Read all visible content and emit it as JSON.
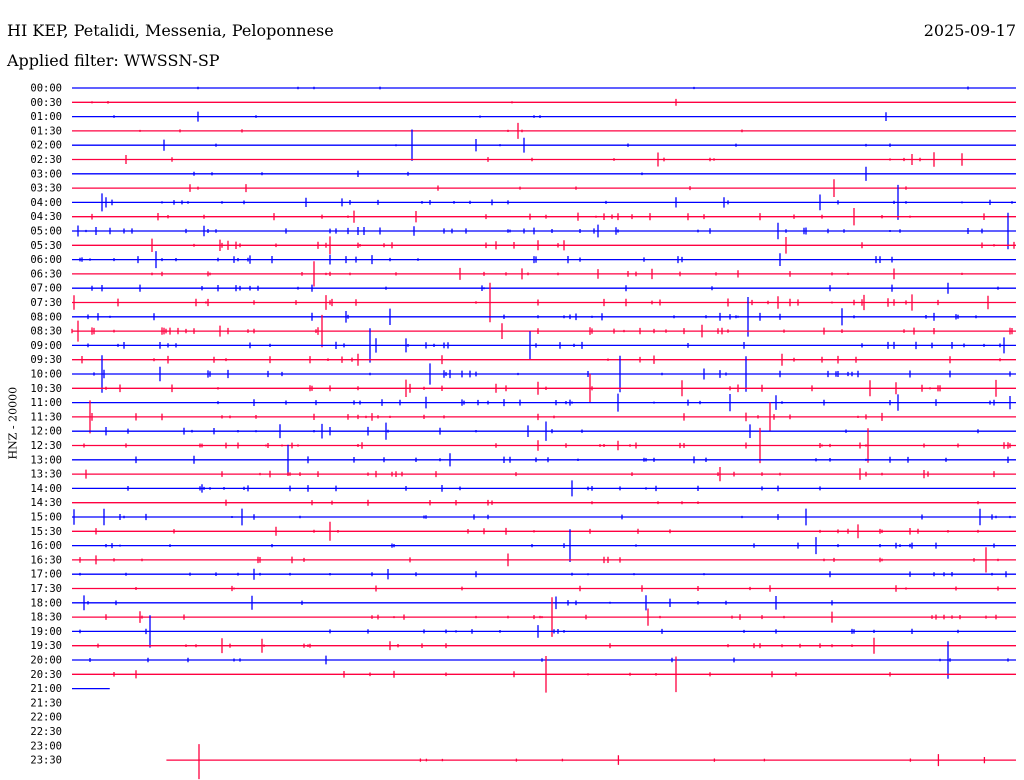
{
  "header": {
    "title": "HI KEP, Petalidi, Messenia, Peloponnese",
    "date": "2025-09-17",
    "filter": "Applied filter: WWSSN-SP"
  },
  "colors": {
    "even": "#0000ff",
    "odd": "#ff0040"
  },
  "chart_data": {
    "type": "line",
    "subtype": "helicorder",
    "title": "HI KEP, Petalidi, Messenia, Peloponnese",
    "ylabel": "HNZ - 20000",
    "row_labels": [
      "00:00",
      "00:30",
      "01:00",
      "01:30",
      "02:00",
      "02:30",
      "03:00",
      "03:30",
      "04:00",
      "04:30",
      "05:00",
      "05:30",
      "06:00",
      "06:30",
      "07:00",
      "07:30",
      "08:00",
      "08:30",
      "09:00",
      "09:30",
      "10:00",
      "10:30",
      "11:00",
      "11:30",
      "12:00",
      "12:30",
      "13:00",
      "13:30",
      "14:00",
      "14:30",
      "15:00",
      "15:30",
      "16:00",
      "16:30",
      "17:00",
      "17:30",
      "18:00",
      "18:30",
      "19:00",
      "19:30",
      "20:00",
      "20:30",
      "21:00",
      "21:30",
      "22:00",
      "22:30",
      "23:00",
      "23:30"
    ],
    "row_minutes": 30,
    "activity": [
      0.2,
      0.1,
      0.2,
      0.2,
      0.3,
      0.5,
      0.4,
      0.6,
      0.7,
      1,
      1,
      0.9,
      0.9,
      0.9,
      0.9,
      1,
      1,
      1,
      0.9,
      1,
      1,
      1,
      0.9,
      1,
      0.8,
      0.8,
      0.8,
      0.8,
      0.8,
      0.7,
      0.7,
      0.8,
      0.7,
      0.8,
      0.7,
      0.8,
      0.6,
      0.6,
      0.6,
      0.5,
      0.5,
      0.5,
      0.1,
      0,
      0,
      0,
      0,
      0.3
    ],
    "coverage": {
      "21:00": [
        0,
        0.04
      ],
      "21:30": null,
      "22:00": null,
      "22:30": null,
      "23:00": null,
      "23:30": [
        0.1,
        1
      ]
    }
  }
}
